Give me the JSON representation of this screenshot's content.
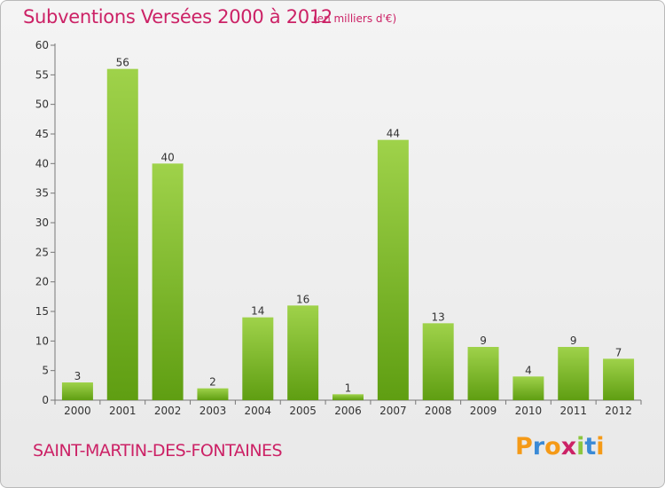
{
  "header": {
    "title": "Subventions Versées 2000 à 2012",
    "subtitle": "(en milliers d'€)"
  },
  "footer": {
    "commune": "SAINT-MARTIN-DES-FONTAINES",
    "logo_text": "Proxiti"
  },
  "colors": {
    "title": "#cc2266",
    "bar_light": "#9fd24a",
    "bar_dark": "#5f9e12",
    "logo_letters": [
      "#f59a17",
      "#3a8ad6",
      "#f59a17",
      "#cc2266",
      "#8cc63f",
      "#3a8ad6",
      "#f59a17"
    ]
  },
  "chart_data": {
    "type": "bar",
    "title": "Subventions Versées 2000 à 2012",
    "xlabel": "",
    "ylabel": "",
    "ylim": [
      0,
      60
    ],
    "yticks": [
      0,
      5,
      10,
      15,
      20,
      25,
      30,
      35,
      40,
      45,
      50,
      55,
      60
    ],
    "grid": false,
    "categories": [
      "2000",
      "2001",
      "2002",
      "2003",
      "2004",
      "2005",
      "2006",
      "2007",
      "2008",
      "2009",
      "2010",
      "2011",
      "2012"
    ],
    "values": [
      3,
      56,
      40,
      2,
      14,
      16,
      1,
      44,
      13,
      9,
      4,
      9,
      7
    ]
  }
}
